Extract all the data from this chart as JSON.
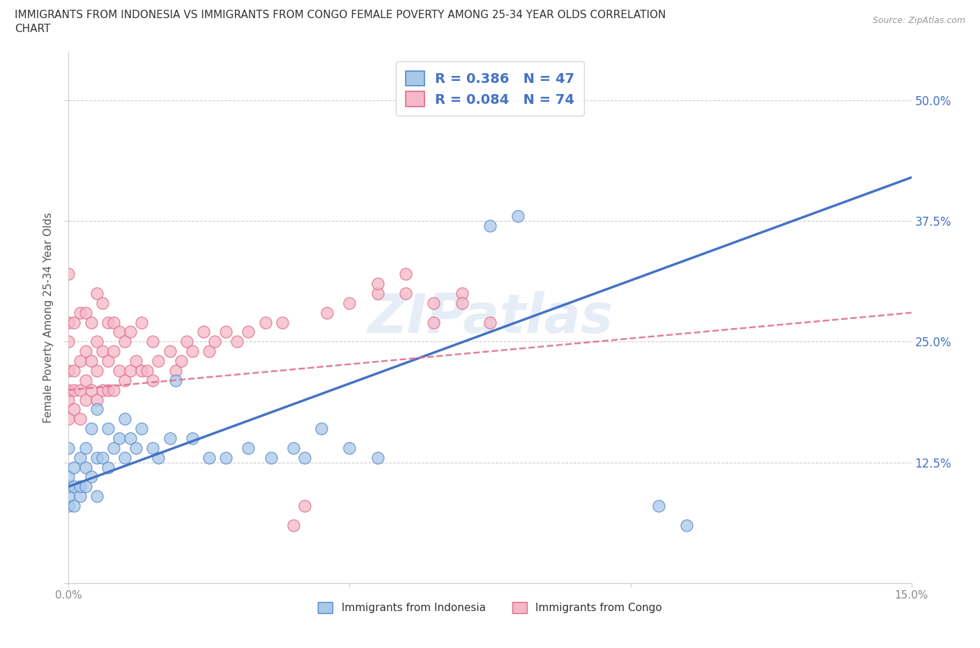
{
  "title_line1": "IMMIGRANTS FROM INDONESIA VS IMMIGRANTS FROM CONGO FEMALE POVERTY AMONG 25-34 YEAR OLDS CORRELATION",
  "title_line2": "CHART",
  "source": "Source: ZipAtlas.com",
  "ylabel": "Female Poverty Among 25-34 Year Olds",
  "xlim": [
    0.0,
    0.15
  ],
  "ylim": [
    0.0,
    0.55
  ],
  "xticks": [
    0.0,
    0.05,
    0.1,
    0.15
  ],
  "xticklabels": [
    "0.0%",
    "",
    "",
    "15.0%"
  ],
  "yticks": [
    0.0,
    0.125,
    0.25,
    0.375,
    0.5
  ],
  "yticklabels_left": [
    "",
    "12.5%",
    "25.0%",
    "37.5%",
    "50.0%"
  ],
  "yticklabels_right": [
    "",
    "12.5%",
    "25.0%",
    "37.5%",
    "50.0%"
  ],
  "indonesia_fill": "#a8c8e8",
  "indonesia_edge": "#5588cc",
  "congo_fill": "#f5b8c8",
  "congo_edge": "#e06888",
  "trend_indonesia_color": "#4472c4",
  "trend_congo_color": "#e07090",
  "R_indonesia": 0.386,
  "N_indonesia": 47,
  "R_congo": 0.084,
  "N_congo": 74,
  "legend_label_indonesia": "Immigrants from Indonesia",
  "legend_label_congo": "Immigrants from Congo",
  "watermark": "ZIPatlas",
  "grid_color": "#cccccc",
  "spine_color": "#cccccc",
  "tick_color": "#888888",
  "title_color": "#333333",
  "source_color": "#999999",
  "axis_label_color": "#555555",
  "right_tick_color": "#4472c4",
  "indonesia_x": [
    0.0,
    0.0,
    0.0,
    0.0,
    0.0,
    0.001,
    0.001,
    0.001,
    0.002,
    0.002,
    0.002,
    0.003,
    0.003,
    0.003,
    0.004,
    0.004,
    0.005,
    0.005,
    0.005,
    0.006,
    0.007,
    0.007,
    0.008,
    0.009,
    0.01,
    0.01,
    0.011,
    0.012,
    0.013,
    0.015,
    0.016,
    0.018,
    0.019,
    0.022,
    0.025,
    0.028,
    0.032,
    0.036,
    0.04,
    0.042,
    0.045,
    0.05,
    0.055,
    0.075,
    0.08,
    0.105,
    0.11
  ],
  "indonesia_y": [
    0.08,
    0.09,
    0.1,
    0.11,
    0.14,
    0.08,
    0.1,
    0.12,
    0.09,
    0.1,
    0.13,
    0.1,
    0.12,
    0.14,
    0.11,
    0.16,
    0.09,
    0.13,
    0.18,
    0.13,
    0.12,
    0.16,
    0.14,
    0.15,
    0.13,
    0.17,
    0.15,
    0.14,
    0.16,
    0.14,
    0.13,
    0.15,
    0.21,
    0.15,
    0.13,
    0.13,
    0.14,
    0.13,
    0.14,
    0.13,
    0.16,
    0.14,
    0.13,
    0.37,
    0.38,
    0.08,
    0.06
  ],
  "congo_x": [
    0.0,
    0.0,
    0.0,
    0.0,
    0.0,
    0.0,
    0.0,
    0.001,
    0.001,
    0.001,
    0.001,
    0.002,
    0.002,
    0.002,
    0.002,
    0.003,
    0.003,
    0.003,
    0.003,
    0.004,
    0.004,
    0.004,
    0.005,
    0.005,
    0.005,
    0.005,
    0.006,
    0.006,
    0.006,
    0.007,
    0.007,
    0.007,
    0.008,
    0.008,
    0.008,
    0.009,
    0.009,
    0.01,
    0.01,
    0.011,
    0.011,
    0.012,
    0.013,
    0.013,
    0.014,
    0.015,
    0.015,
    0.016,
    0.018,
    0.019,
    0.02,
    0.021,
    0.022,
    0.024,
    0.025,
    0.026,
    0.028,
    0.03,
    0.032,
    0.035,
    0.038,
    0.04,
    0.042,
    0.046,
    0.05,
    0.055,
    0.06,
    0.065,
    0.06,
    0.065,
    0.07,
    0.075,
    0.07,
    0.055
  ],
  "congo_y": [
    0.17,
    0.19,
    0.2,
    0.22,
    0.25,
    0.27,
    0.32,
    0.18,
    0.2,
    0.22,
    0.27,
    0.17,
    0.2,
    0.23,
    0.28,
    0.19,
    0.21,
    0.24,
    0.28,
    0.2,
    0.23,
    0.27,
    0.19,
    0.22,
    0.25,
    0.3,
    0.2,
    0.24,
    0.29,
    0.2,
    0.23,
    0.27,
    0.2,
    0.24,
    0.27,
    0.22,
    0.26,
    0.21,
    0.25,
    0.22,
    0.26,
    0.23,
    0.22,
    0.27,
    0.22,
    0.21,
    0.25,
    0.23,
    0.24,
    0.22,
    0.23,
    0.25,
    0.24,
    0.26,
    0.24,
    0.25,
    0.26,
    0.25,
    0.26,
    0.27,
    0.27,
    0.06,
    0.08,
    0.28,
    0.29,
    0.3,
    0.3,
    0.27,
    0.32,
    0.29,
    0.3,
    0.27,
    0.29,
    0.31
  ]
}
